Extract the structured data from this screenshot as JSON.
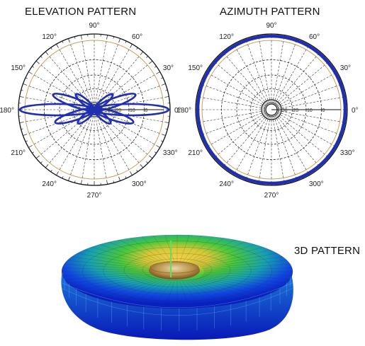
{
  "titles": {
    "elevation": "ELEVATION PATTERN",
    "azimuth": "AZIMUTH PATTERN",
    "pattern3d": "3D PATTERN"
  },
  "polar": {
    "angle_labels": [
      {
        "deg": 0,
        "text": "0°"
      },
      {
        "deg": 30,
        "text": "30°"
      },
      {
        "deg": 60,
        "text": "60°"
      },
      {
        "deg": 90,
        "text": "90°"
      },
      {
        "deg": 120,
        "text": "120°"
      },
      {
        "deg": 150,
        "text": "150°"
      },
      {
        "deg": 180,
        "text": "180°"
      },
      {
        "deg": 210,
        "text": "210°"
      },
      {
        "deg": 240,
        "text": "240°"
      },
      {
        "deg": 270,
        "text": "270°"
      },
      {
        "deg": 300,
        "text": "300°"
      },
      {
        "deg": 330,
        "text": "330°"
      }
    ],
    "radial_labels": [
      "30",
      "20",
      "10",
      "0"
    ],
    "colors": {
      "pattern": "#1f2fb0",
      "outer_ring": "#c8a060",
      "grid": "#222222"
    }
  },
  "colors_3d": {
    "inner": "#f0c040",
    "mid": "#30c030",
    "outer": "#1030e0"
  }
}
